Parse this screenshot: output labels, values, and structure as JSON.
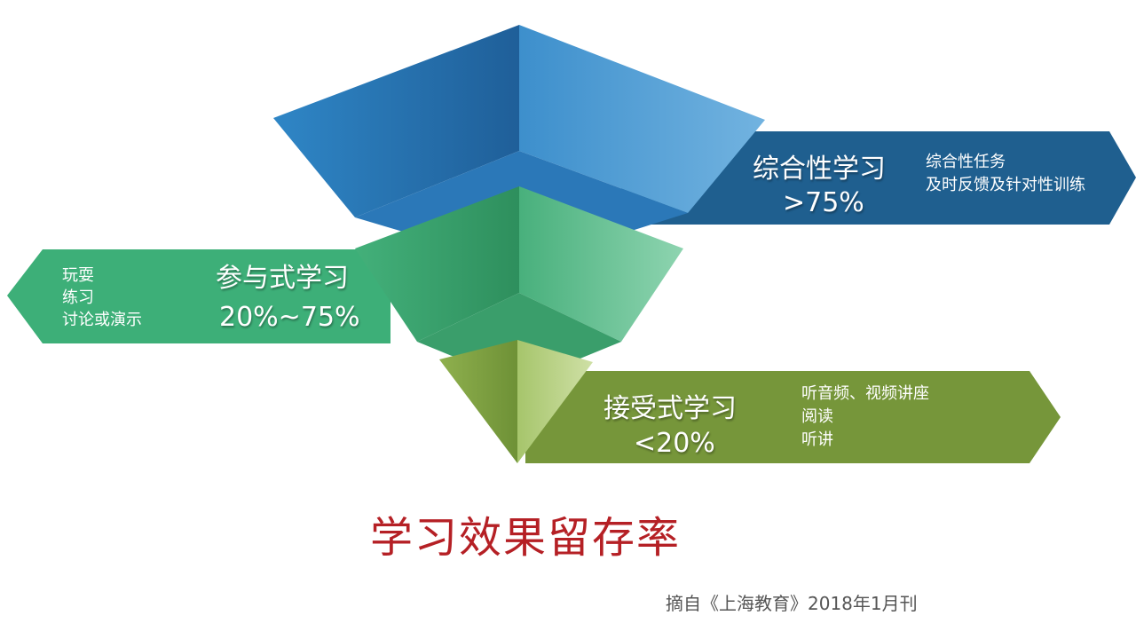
{
  "title": "学习效果留存率",
  "citation": "摘自《上海教育》2018年1月刊",
  "colors": {
    "blue": "#1f5f8f",
    "green": "#3daf78",
    "olive": "#76963a",
    "title_red": "#b52025"
  },
  "tiers": [
    {
      "name": "综合性学习",
      "retention": ">75%",
      "items": [
        "综合性任务",
        "及时反馈及针对性训练"
      ]
    },
    {
      "name": "参与式学习",
      "retention": "20%~75%",
      "items": [
        "玩耍",
        "练习",
        "讨论或演示"
      ]
    },
    {
      "name": "接受式学习",
      "retention": "<20%",
      "items": [
        "听音频、视频讲座",
        "阅读",
        "听讲"
      ]
    }
  ]
}
